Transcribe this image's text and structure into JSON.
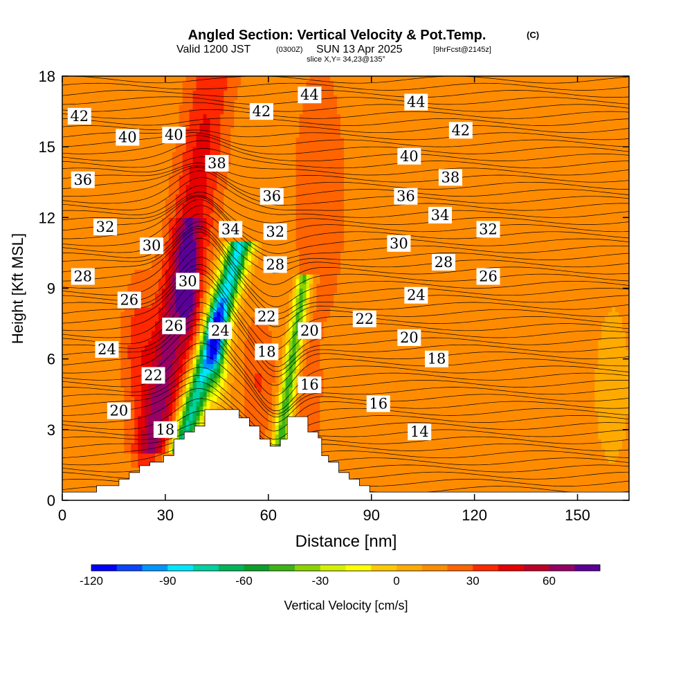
{
  "header": {
    "title_main": "Angled Section: Vertical Velocity & Pot.Temp.",
    "title_units": "(C)",
    "valid_prefix": "Valid 1200 JST",
    "valid_utc": "(0300Z)",
    "valid_date": "SUN 13 Apr 2025",
    "valid_fcst": "[9hrFcst@2145z]",
    "slice": "slice X,Y= 34,23@135°"
  },
  "chart_data": {
    "type": "heatmap",
    "title": "Angled Section: Vertical Velocity & Pot.Temp.",
    "xlabel": "Distance [nm]",
    "ylabel": "Height [Kft MSL]",
    "xlim": [
      0,
      165
    ],
    "ylim": [
      0,
      18
    ],
    "x_ticks": [
      0,
      30,
      60,
      90,
      120,
      150
    ],
    "y_ticks": [
      0,
      3,
      6,
      9,
      12,
      15,
      18
    ],
    "colorbar": {
      "label": "Vertical Velocity [cm/s]",
      "min": -120,
      "max": 80,
      "step": 10,
      "tick_values": [
        -120,
        -90,
        -60,
        -30,
        0,
        30,
        60
      ],
      "colors": [
        "#0000ff",
        "#0a46ff",
        "#0096ff",
        "#00e6ff",
        "#00d2a0",
        "#00b45a",
        "#0aa028",
        "#3cb414",
        "#8cd200",
        "#d2f000",
        "#ffff00",
        "#ffc800",
        "#ffaa00",
        "#ff8c00",
        "#ff6400",
        "#ff2800",
        "#e60000",
        "#be0028",
        "#960064",
        "#5a0096"
      ]
    },
    "theta_labels": [
      {
        "x": 5,
        "y": 16.3,
        "v": "42"
      },
      {
        "x": 19,
        "y": 15.4,
        "v": "40"
      },
      {
        "x": 32.5,
        "y": 15.5,
        "v": "40"
      },
      {
        "x": 58,
        "y": 16.5,
        "v": "42"
      },
      {
        "x": 72,
        "y": 17.2,
        "v": "44"
      },
      {
        "x": 103,
        "y": 16.9,
        "v": "44"
      },
      {
        "x": 116,
        "y": 15.7,
        "v": "42"
      },
      {
        "x": 101,
        "y": 14.6,
        "v": "40"
      },
      {
        "x": 45,
        "y": 14.3,
        "v": "38"
      },
      {
        "x": 113,
        "y": 13.7,
        "v": "38"
      },
      {
        "x": 6,
        "y": 13.6,
        "v": "36"
      },
      {
        "x": 61,
        "y": 12.9,
        "v": "36"
      },
      {
        "x": 100,
        "y": 12.9,
        "v": "36"
      },
      {
        "x": 110,
        "y": 12.1,
        "v": "34"
      },
      {
        "x": 49,
        "y": 11.5,
        "v": "34"
      },
      {
        "x": 12.5,
        "y": 11.6,
        "v": "32"
      },
      {
        "x": 62,
        "y": 11.4,
        "v": "32"
      },
      {
        "x": 124,
        "y": 11.5,
        "v": "32"
      },
      {
        "x": 26,
        "y": 10.8,
        "v": "30"
      },
      {
        "x": 98,
        "y": 10.9,
        "v": "30"
      },
      {
        "x": 36.5,
        "y": 9.3,
        "v": "30"
      },
      {
        "x": 6,
        "y": 9.5,
        "v": "28"
      },
      {
        "x": 62,
        "y": 10.0,
        "v": "28"
      },
      {
        "x": 111,
        "y": 10.1,
        "v": "28"
      },
      {
        "x": 124,
        "y": 9.5,
        "v": "26"
      },
      {
        "x": 19.5,
        "y": 8.5,
        "v": "26"
      },
      {
        "x": 32.5,
        "y": 7.4,
        "v": "26"
      },
      {
        "x": 103,
        "y": 8.7,
        "v": "24"
      },
      {
        "x": 46,
        "y": 7.2,
        "v": "24"
      },
      {
        "x": 13,
        "y": 6.4,
        "v": "24"
      },
      {
        "x": 59.5,
        "y": 7.8,
        "v": "22"
      },
      {
        "x": 88,
        "y": 7.7,
        "v": "22"
      },
      {
        "x": 26.5,
        "y": 5.3,
        "v": "22"
      },
      {
        "x": 72,
        "y": 7.2,
        "v": "20"
      },
      {
        "x": 101,
        "y": 6.9,
        "v": "20"
      },
      {
        "x": 16.5,
        "y": 3.8,
        "v": "20"
      },
      {
        "x": 59.5,
        "y": 6.3,
        "v": "18"
      },
      {
        "x": 109,
        "y": 6.0,
        "v": "18"
      },
      {
        "x": 30,
        "y": 3.0,
        "v": "18"
      },
      {
        "x": 72,
        "y": 4.9,
        "v": "16"
      },
      {
        "x": 92,
        "y": 4.1,
        "v": "16"
      },
      {
        "x": 104,
        "y": 2.9,
        "v": "14"
      }
    ],
    "terrain": [
      [
        0,
        0.35
      ],
      [
        10,
        0.35
      ],
      [
        10,
        0.62
      ],
      [
        16.5,
        0.62
      ],
      [
        16.5,
        0.9
      ],
      [
        19.5,
        0.9
      ],
      [
        19.5,
        1.18
      ],
      [
        22.5,
        1.18
      ],
      [
        22.5,
        1.47
      ],
      [
        25.5,
        1.47
      ],
      [
        25.5,
        1.62
      ],
      [
        29.5,
        1.62
      ],
      [
        29.5,
        1.9
      ],
      [
        32.5,
        1.9
      ],
      [
        32.5,
        2.6
      ],
      [
        35.5,
        2.6
      ],
      [
        35.5,
        2.9
      ],
      [
        38.5,
        2.9
      ],
      [
        38.5,
        3.15
      ],
      [
        41.5,
        3.15
      ],
      [
        41.5,
        3.85
      ],
      [
        51.5,
        3.85
      ],
      [
        51.5,
        3.5
      ],
      [
        54.5,
        3.5
      ],
      [
        54.5,
        3.15
      ],
      [
        57.5,
        3.15
      ],
      [
        57.5,
        2.6
      ],
      [
        60.5,
        2.6
      ],
      [
        60.5,
        2.3
      ],
      [
        63.5,
        2.3
      ],
      [
        63.5,
        2.6
      ],
      [
        65.5,
        2.6
      ],
      [
        65.5,
        3.55
      ],
      [
        71.5,
        3.55
      ],
      [
        71.5,
        2.9
      ],
      [
        74.5,
        2.9
      ],
      [
        74.5,
        2.65
      ],
      [
        75.5,
        2.65
      ],
      [
        75.5,
        1.9
      ],
      [
        77.5,
        1.9
      ],
      [
        77.5,
        1.62
      ],
      [
        80.5,
        1.62
      ],
      [
        80.5,
        1.18
      ],
      [
        83.5,
        1.18
      ],
      [
        83.5,
        0.9
      ],
      [
        86.5,
        0.9
      ],
      [
        86.5,
        0.62
      ],
      [
        89.5,
        0.62
      ],
      [
        89.5,
        0.35
      ],
      [
        165,
        0.35
      ]
    ]
  }
}
